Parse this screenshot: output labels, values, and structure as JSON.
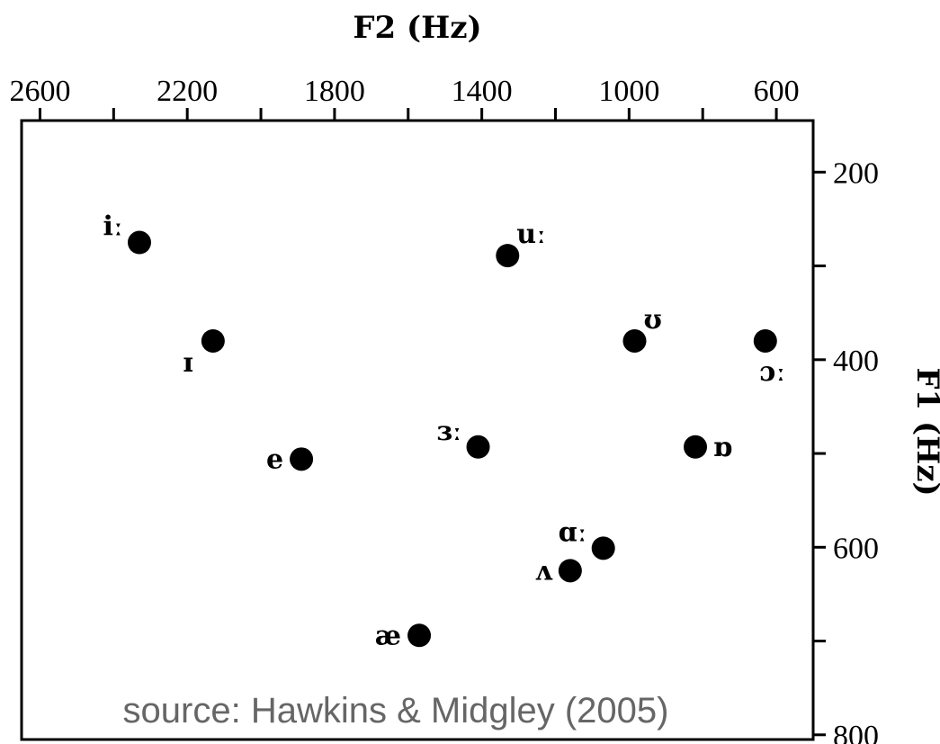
{
  "chart_data": {
    "type": "scatter",
    "xlabel": "F2 (Hz)",
    "ylabel": "F1 (Hz)",
    "x_axis_position": "top",
    "y_axis_position": "right",
    "x_reversed": true,
    "y_reversed": true,
    "xlim": [
      2650,
      500
    ],
    "ylim": [
      145,
      805
    ],
    "x_ticks_major": [
      2600,
      2200,
      1800,
      1400,
      1000,
      600
    ],
    "x_ticks_minor": [
      2400,
      2000,
      1600,
      1200,
      800
    ],
    "y_ticks_major": [
      200,
      400,
      600,
      800
    ],
    "y_ticks_minor": [
      300,
      500,
      700
    ],
    "grid": false,
    "legend": "none",
    "annotation": "source: Hawkins & Midgley (2005)",
    "points": [
      {
        "label": "iː",
        "x": 2330,
        "y": 275,
        "label_side": "upper-left"
      },
      {
        "label": "uː",
        "x": 1330,
        "y": 289,
        "label_side": "upper-right"
      },
      {
        "label": "ɪ",
        "x": 2130,
        "y": 380,
        "label_side": "lower-left"
      },
      {
        "label": "ʊ",
        "x": 985,
        "y": 380,
        "label_side": "upper-right"
      },
      {
        "label": "ɔː",
        "x": 630,
        "y": 380,
        "label_side": "below"
      },
      {
        "label": "ɜː",
        "x": 1410,
        "y": 493,
        "label_side": "upper-left"
      },
      {
        "label": "e",
        "x": 1890,
        "y": 506,
        "label_side": "left"
      },
      {
        "label": "ɒ",
        "x": 820,
        "y": 493,
        "label_side": "right"
      },
      {
        "label": "ɑː",
        "x": 1070,
        "y": 601,
        "label_side": "upper-left"
      },
      {
        "label": "ʌ",
        "x": 1160,
        "y": 625,
        "label_side": "left"
      },
      {
        "label": "æ",
        "x": 1570,
        "y": 694,
        "label_side": "left"
      }
    ]
  }
}
